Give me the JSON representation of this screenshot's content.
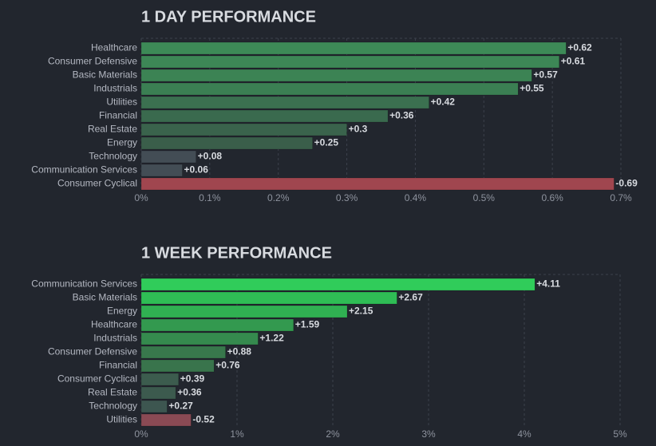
{
  "chart_data": [
    {
      "type": "bar",
      "orientation": "horizontal",
      "title": "1 DAY PERFORMANCE",
      "categories": [
        "Healthcare",
        "Consumer Defensive",
        "Basic Materials",
        "Industrials",
        "Utilities",
        "Financial",
        "Real Estate",
        "Energy",
        "Technology",
        "Communication Services",
        "Consumer Cyclical"
      ],
      "values": [
        0.62,
        0.61,
        0.57,
        0.55,
        0.42,
        0.36,
        0.3,
        0.25,
        0.08,
        0.06,
        -0.69
      ],
      "value_labels": [
        "+0.62",
        "+0.61",
        "+0.57",
        "+0.55",
        "+0.42",
        "+0.36",
        "+0.3",
        "+0.25",
        "+0.08",
        "+0.06",
        "-0.69"
      ],
      "colors": [
        "#3d8a57",
        "#3d8756",
        "#3c8354",
        "#3b7f53",
        "#3b7050",
        "#3a6a4e",
        "#3a634c",
        "#3a5e4a",
        "#434d55",
        "#434d55",
        "#a0464f"
      ],
      "xlim": [
        0,
        0.7
      ],
      "xticks": [
        {
          "value": 0,
          "label": "0%"
        },
        {
          "value": 0.1,
          "label": "0.1%"
        },
        {
          "value": 0.2,
          "label": "0.2%"
        },
        {
          "value": 0.3,
          "label": "0.3%"
        },
        {
          "value": 0.4,
          "label": "0.4%"
        },
        {
          "value": 0.5,
          "label": "0.5%"
        },
        {
          "value": 0.6,
          "label": "0.6%"
        },
        {
          "value": 0.7,
          "label": "0.7%"
        }
      ],
      "grid": true
    },
    {
      "type": "bar",
      "orientation": "horizontal",
      "title": "1 WEEK PERFORMANCE",
      "categories": [
        "Communication Services",
        "Basic Materials",
        "Energy",
        "Healthcare",
        "Industrials",
        "Consumer Defensive",
        "Financial",
        "Consumer Cyclical",
        "Real Estate",
        "Technology",
        "Utilities"
      ],
      "values": [
        4.11,
        2.67,
        2.15,
        1.59,
        1.22,
        0.88,
        0.76,
        0.39,
        0.36,
        0.27,
        -0.52
      ],
      "value_labels": [
        "+4.11",
        "+2.67",
        "+2.15",
        "+1.59",
        "+1.22",
        "+0.88",
        "+0.76",
        "+0.39",
        "+0.36",
        "+0.27",
        "-0.52"
      ],
      "colors": [
        "#30cc5a",
        "#2fbd55",
        "#30b052",
        "#33994f",
        "#358a4e",
        "#38784c",
        "#39744c",
        "#3c5c4e",
        "#3c5a4e",
        "#3d5650",
        "#8a4a54"
      ],
      "xlim": [
        0,
        5
      ],
      "xticks": [
        {
          "value": 0,
          "label": "0%"
        },
        {
          "value": 1,
          "label": "1%"
        },
        {
          "value": 2,
          "label": "2%"
        },
        {
          "value": 3,
          "label": "3%"
        },
        {
          "value": 4,
          "label": "4%"
        },
        {
          "value": 5,
          "label": "5%"
        }
      ],
      "grid": true
    }
  ]
}
